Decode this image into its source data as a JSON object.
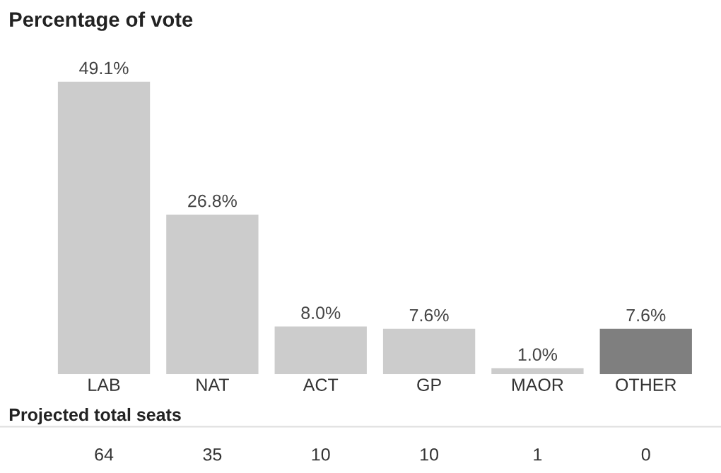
{
  "chart_data": {
    "type": "bar",
    "title": "Percentage of vote",
    "categories": [
      "LAB",
      "NAT",
      "ACT",
      "GP",
      "MAOR",
      "OTHER"
    ],
    "values": [
      49.1,
      26.8,
      8.0,
      7.6,
      1.0,
      7.6
    ],
    "value_labels": [
      "49.1%",
      "26.8%",
      "8.0%",
      "7.6%",
      "1.0%",
      "7.6%"
    ],
    "colors": [
      "#cccccc",
      "#cccccc",
      "#cccccc",
      "#cccccc",
      "#cccccc",
      "#7f7f7f"
    ],
    "grid": false,
    "legend": false,
    "annotations": [
      "Projected total seats",
      "64",
      "35",
      "10",
      "10",
      "1",
      "0"
    ]
  }
}
